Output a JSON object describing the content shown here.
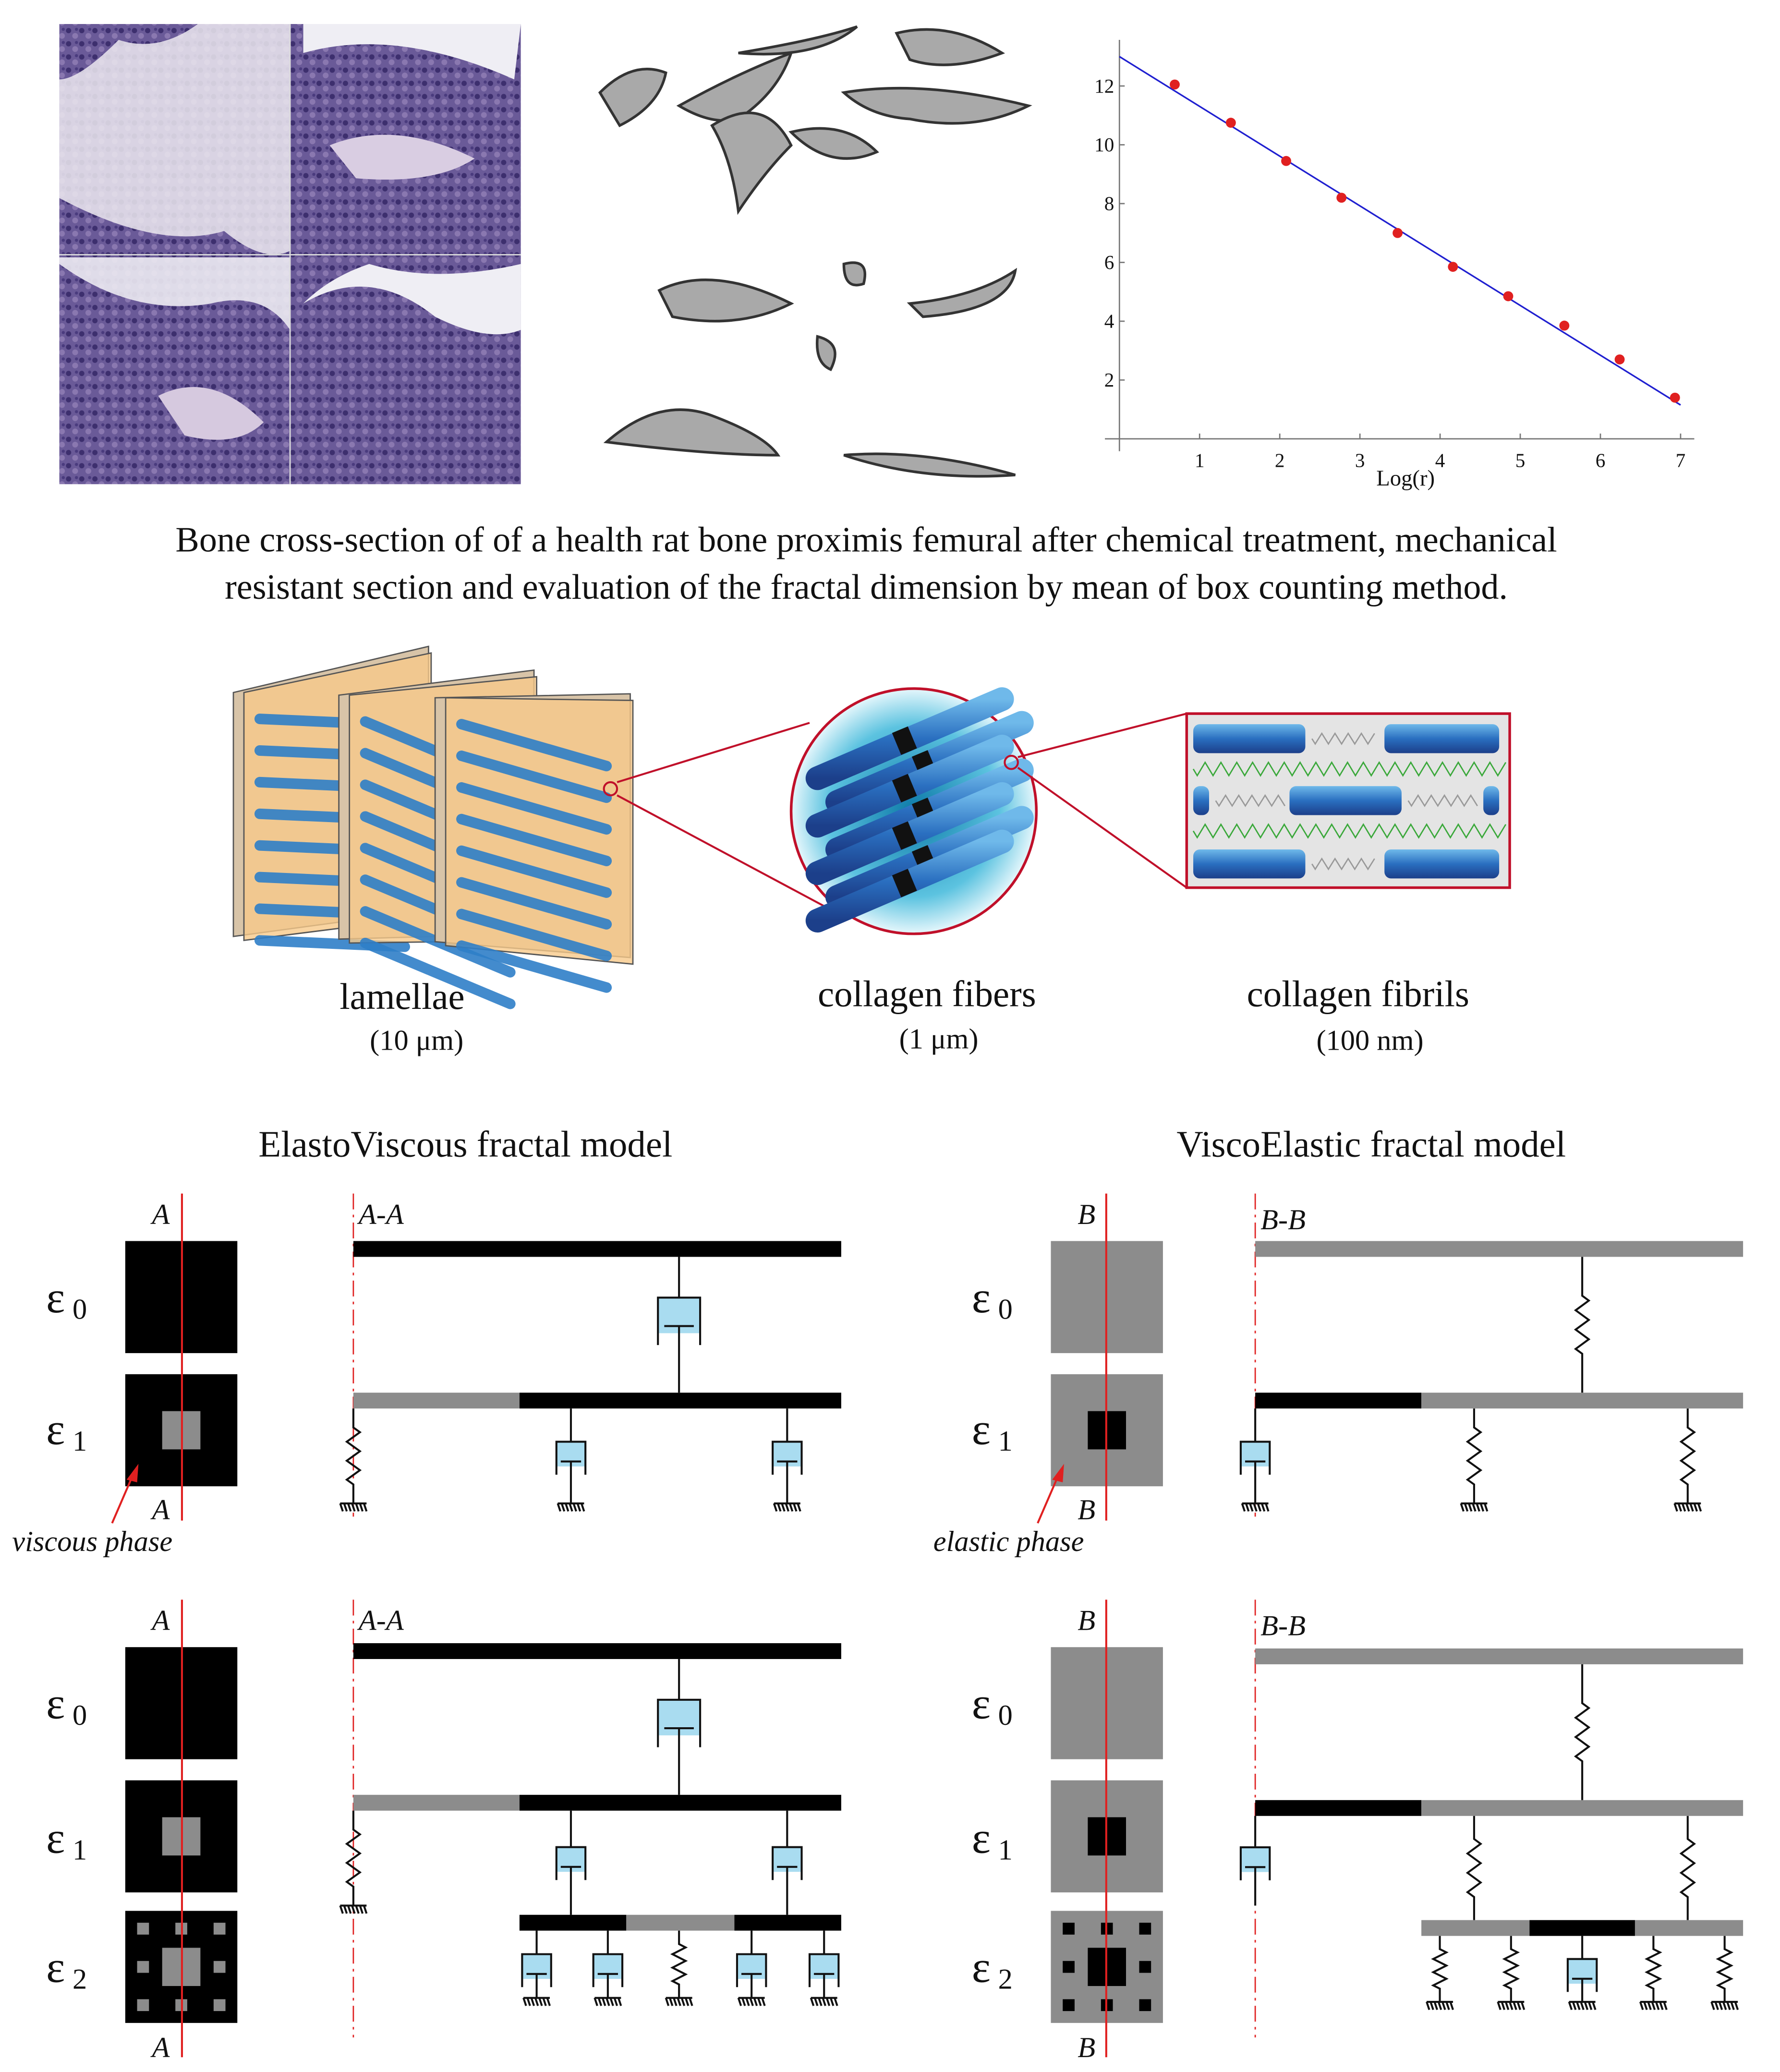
{
  "caption": {
    "line1": "Bone cross-section of  of a health rat bone proximis femural after chemical treatment, mechanical",
    "line2": "resistant section and evaluation of the fractal dimension by mean of box counting method."
  },
  "chart_data": {
    "type": "scatter",
    "xlabel": "Log(r)",
    "ylabel": "",
    "xlim": [
      0,
      7
    ],
    "ylim": [
      0,
      13
    ],
    "xticks": [
      "1",
      "2",
      "3",
      "4",
      "5",
      "6",
      "7"
    ],
    "yticks": [
      "2",
      "4",
      "6",
      "8",
      "10",
      "12"
    ],
    "grid": false,
    "x": [
      0.69,
      1.39,
      2.08,
      2.77,
      3.47,
      4.16,
      4.85,
      5.55,
      6.24,
      6.93
    ],
    "y": [
      12.05,
      10.75,
      9.45,
      8.2,
      7.0,
      5.85,
      4.85,
      3.85,
      2.7,
      1.4
    ],
    "fit_line": {
      "x": [
        0,
        7
      ],
      "y": [
        13.0,
        1.15
      ]
    },
    "colors": {
      "points": "#e02020",
      "line": "#1f1fd0"
    }
  },
  "hierarchy": [
    {
      "label": "lamellae",
      "scale": "(10 μm)"
    },
    {
      "label": "collagen fibers",
      "scale": "(1 μm)"
    },
    {
      "label": "collagen fibrils",
      "scale": "(100 nm)"
    }
  ],
  "models": {
    "left": {
      "title": "ElastoViscous fractal model",
      "section": "A",
      "cut": "A-A",
      "phase": "viscous phase"
    },
    "right": {
      "title": "ViscoElastic fractal model",
      "section": "B",
      "cut": "B-B",
      "phase": "elastic phase"
    }
  },
  "levels": {
    "e0": "ε",
    "sub0": "0",
    "sub1": "1",
    "sub2": "2"
  },
  "colors": {
    "black": "#000000",
    "gray": "#8c8c8c",
    "dashpot": "#a9dcf0",
    "red": "#e02020",
    "plate": "#f8c98a",
    "fiber": "#2f7fc8"
  }
}
